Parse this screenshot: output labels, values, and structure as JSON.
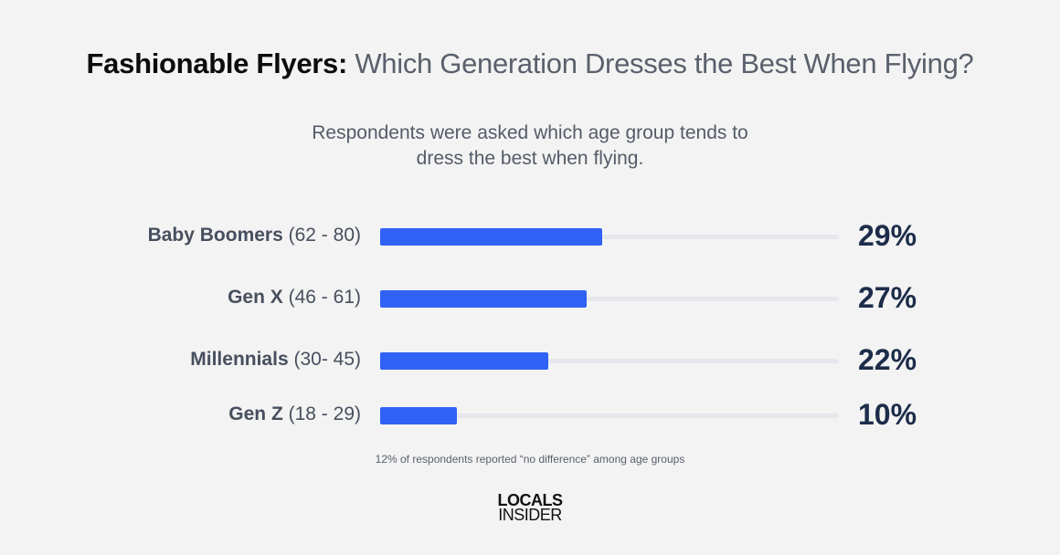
{
  "chart_data": {
    "type": "bar",
    "orientation": "horizontal",
    "title_bold": "Fashionable Flyers:",
    "title": "Which Generation Dresses the Best When Flying?",
    "subtitle": "Respondents were asked which age group tends to dress the best when flying.",
    "categories": [
      {
        "name": "Baby Boomers",
        "range": "(62 - 80)"
      },
      {
        "name": "Gen X",
        "range": "(46 - 61)"
      },
      {
        "name": "Millennials",
        "range": "(30- 45)"
      },
      {
        "name": "Gen Z",
        "range": "(18 - 29)"
      }
    ],
    "values": [
      29,
      27,
      22,
      10
    ],
    "value_labels": [
      "29%",
      "27%",
      "22%",
      "10%"
    ],
    "xlim": [
      0,
      60
    ],
    "grid": false,
    "colors": {
      "bar": "#2f62f5",
      "track": "#e6e7ec",
      "value": "#1d2c4a"
    },
    "footnote": "12% of respondents reported “no difference” among age groups"
  },
  "logo": {
    "line1": "LOCALS",
    "line2": "INSIDER"
  }
}
